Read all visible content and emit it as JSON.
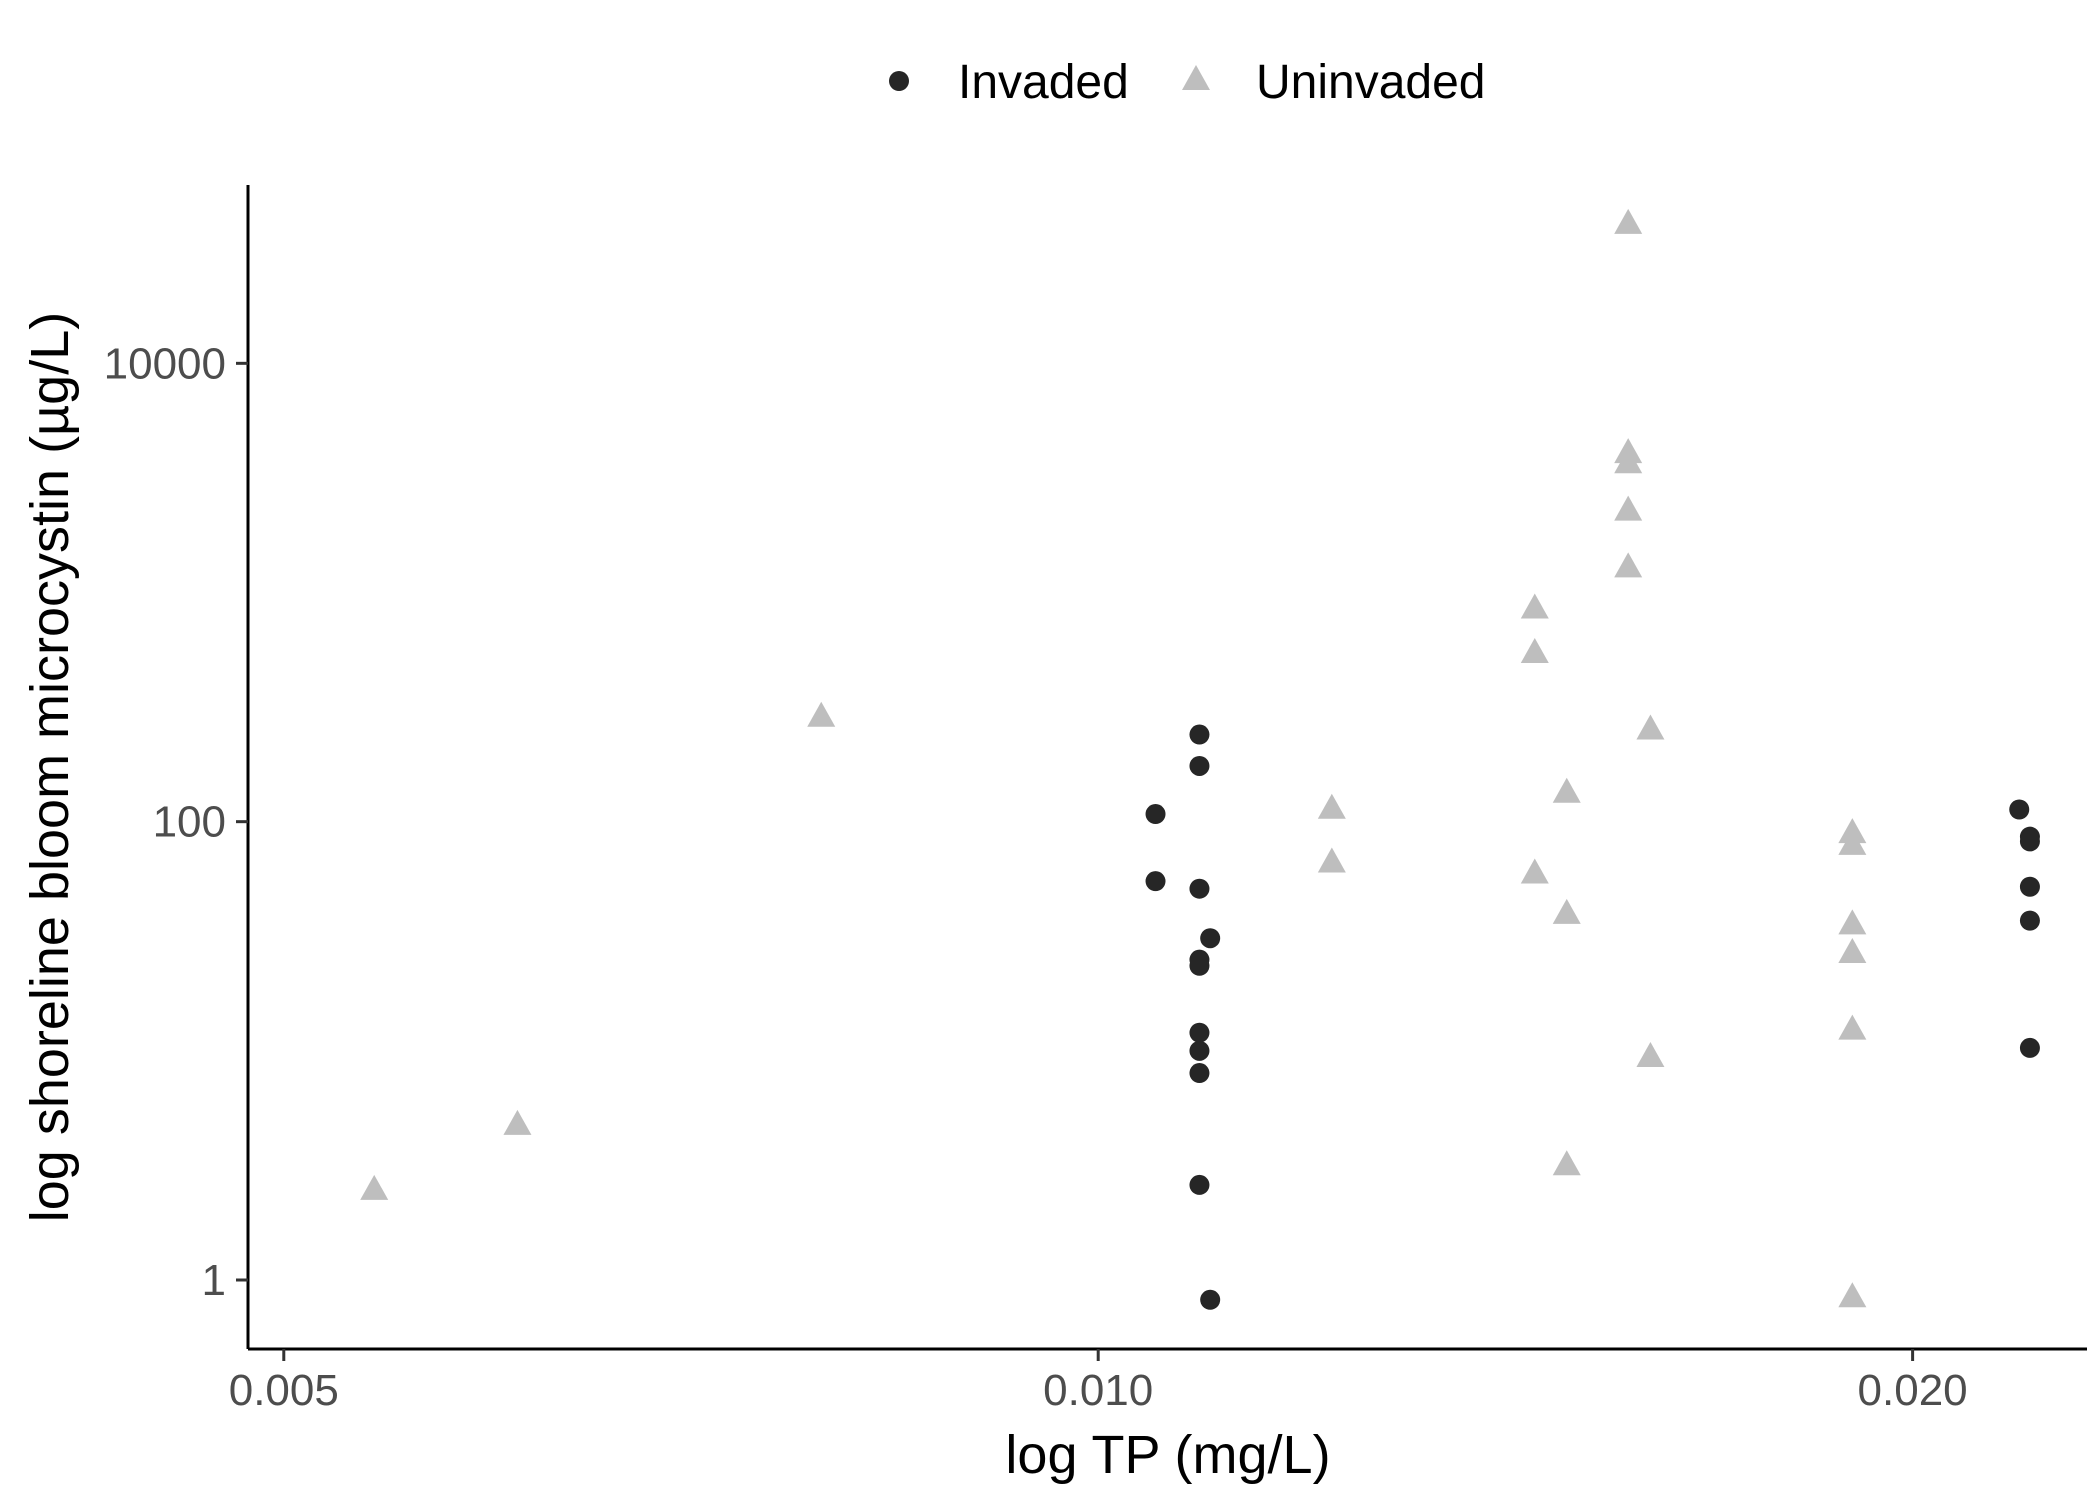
{
  "chart_data": {
    "type": "scatter",
    "xlabel": "log TP (mg/L)",
    "ylabel": "log shoreline bloom microcystin (µg/L)",
    "x_scale": "log10",
    "y_scale": "log10",
    "xlim": [
      0.00485,
      0.0232
    ],
    "ylim": [
      0.5,
      60000
    ],
    "x_ticks": [
      {
        "value": 0.005,
        "label": "0.005"
      },
      {
        "value": 0.01,
        "label": "0.010"
      },
      {
        "value": 0.02,
        "label": "0.020"
      }
    ],
    "y_ticks": [
      {
        "value": 1,
        "label": "1"
      },
      {
        "value": 100,
        "label": "100"
      },
      {
        "value": 10000,
        "label": "10000"
      }
    ],
    "grid": false,
    "legend_position": "top",
    "series": [
      {
        "name": "Invaded",
        "marker": "circle",
        "color": "#262626",
        "points": [
          {
            "x": 0.0109,
            "y": 240
          },
          {
            "x": 0.0109,
            "y": 175
          },
          {
            "x": 0.0105,
            "y": 108
          },
          {
            "x": 0.0105,
            "y": 55
          },
          {
            "x": 0.0109,
            "y": 51
          },
          {
            "x": 0.011,
            "y": 31
          },
          {
            "x": 0.0109,
            "y": 25
          },
          {
            "x": 0.0109,
            "y": 23.5
          },
          {
            "x": 0.0109,
            "y": 12
          },
          {
            "x": 0.0109,
            "y": 10
          },
          {
            "x": 0.0109,
            "y": 8
          },
          {
            "x": 0.0109,
            "y": 2.6
          },
          {
            "x": 0.011,
            "y": 0.82
          },
          {
            "x": 0.0219,
            "y": 113
          },
          {
            "x": 0.0221,
            "y": 86
          },
          {
            "x": 0.0221,
            "y": 82
          },
          {
            "x": 0.0221,
            "y": 52
          },
          {
            "x": 0.0221,
            "y": 37
          },
          {
            "x": 0.0221,
            "y": 10.3
          }
        ]
      },
      {
        "name": "Uninvaded",
        "marker": "triangle",
        "color": "#bebebe",
        "points": [
          {
            "x": 0.0054,
            "y": 2.5
          },
          {
            "x": 0.0061,
            "y": 4.8
          },
          {
            "x": 0.0079,
            "y": 290
          },
          {
            "x": 0.0122,
            "y": 115
          },
          {
            "x": 0.0122,
            "y": 67
          },
          {
            "x": 0.0145,
            "y": 860
          },
          {
            "x": 0.0145,
            "y": 550
          },
          {
            "x": 0.0145,
            "y": 60
          },
          {
            "x": 0.0149,
            "y": 135
          },
          {
            "x": 0.0149,
            "y": 40
          },
          {
            "x": 0.0149,
            "y": 3.2
          },
          {
            "x": 0.0157,
            "y": 41000
          },
          {
            "x": 0.0157,
            "y": 4100
          },
          {
            "x": 0.0157,
            "y": 3700
          },
          {
            "x": 0.0157,
            "y": 2300
          },
          {
            "x": 0.0157,
            "y": 1300
          },
          {
            "x": 0.016,
            "y": 255
          },
          {
            "x": 0.016,
            "y": 9.5
          },
          {
            "x": 0.019,
            "y": 90
          },
          {
            "x": 0.019,
            "y": 80
          },
          {
            "x": 0.019,
            "y": 36
          },
          {
            "x": 0.019,
            "y": 27
          },
          {
            "x": 0.019,
            "y": 12.5
          },
          {
            "x": 0.019,
            "y": 0.85
          }
        ]
      }
    ]
  }
}
